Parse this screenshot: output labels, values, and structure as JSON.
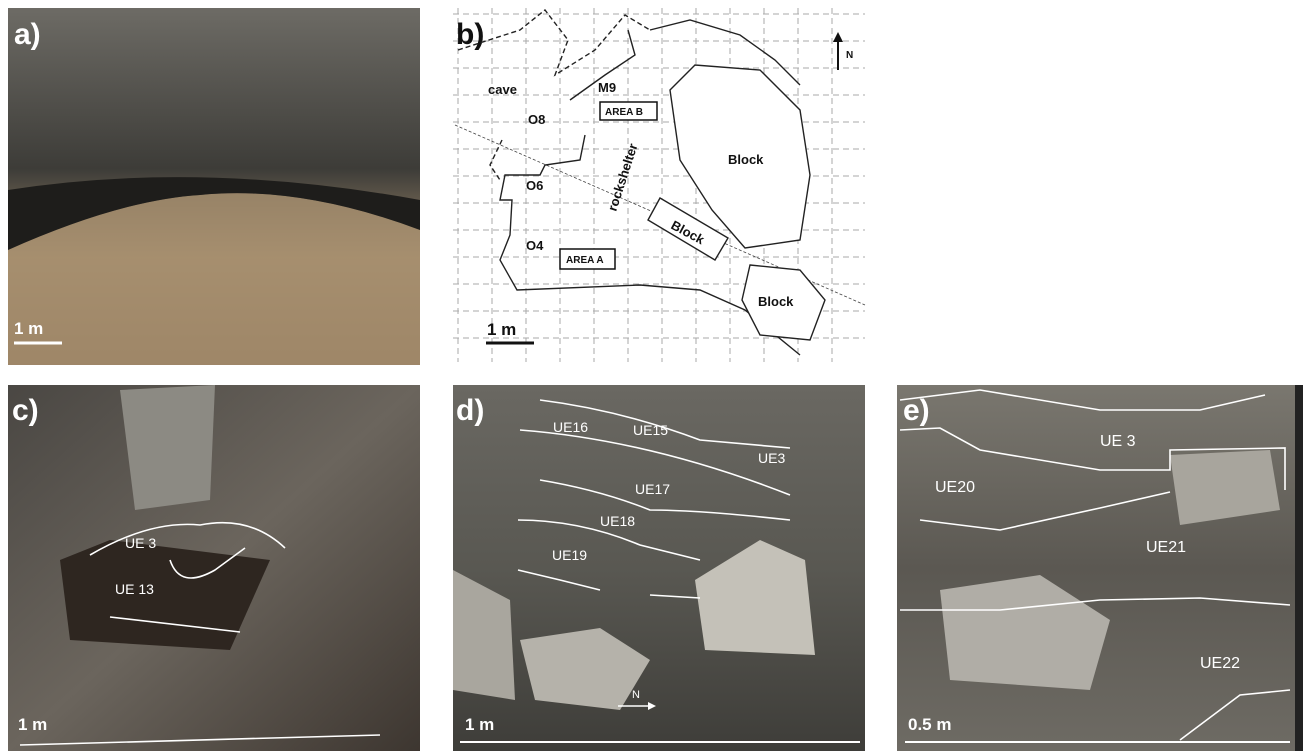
{
  "panel_a": {
    "label": "a)",
    "scale": "1 m"
  },
  "panel_b": {
    "label": "b)",
    "scale": "1 m",
    "north": "N",
    "labels": [
      "cave",
      "M9",
      "O8",
      "O6",
      "O4",
      "rockshelter",
      "Block",
      "Block",
      "Block"
    ],
    "areas": [
      "AREA B",
      "AREA A"
    ]
  },
  "panel_c": {
    "label": "c)",
    "scale": "1 m",
    "units": [
      "UE 3",
      "UE 13"
    ]
  },
  "panel_d": {
    "label": "d)",
    "scale": "1 m",
    "north": "N",
    "units": [
      "UE16",
      "UE15",
      "UE3",
      "UE17",
      "UE18",
      "UE19"
    ]
  },
  "panel_e": {
    "label": "e)",
    "scale": "0.5 m",
    "units": [
      "UE 3",
      "UE20",
      "UE21",
      "UE22"
    ]
  }
}
